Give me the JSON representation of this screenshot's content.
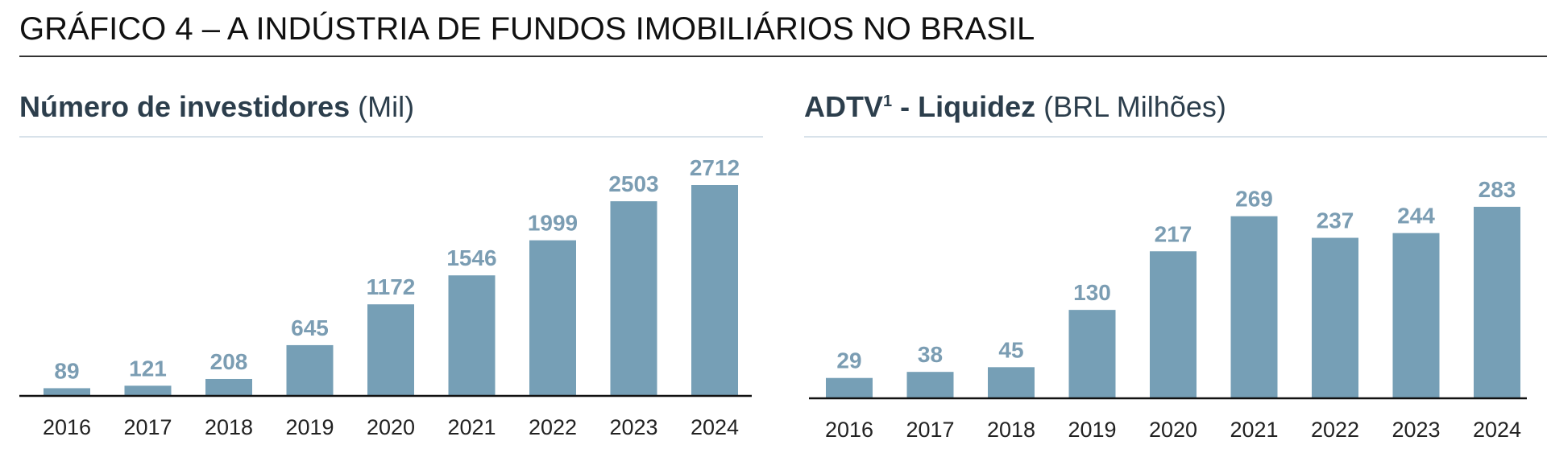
{
  "title": "GRÁFICO 4 – A INDÚSTRIA DE FUNDOS IMOBILIÁRIOS NO BRASIL",
  "colors": {
    "bar": "#769fb6",
    "value_label": "#7b9db3",
    "subtitle": "#2c3e4c"
  },
  "chart_data": [
    {
      "type": "bar",
      "title": "Número de investidores",
      "title_unit": "(Mil)",
      "categories": [
        "2016",
        "2017",
        "2018",
        "2019",
        "2020",
        "2021",
        "2022",
        "2023",
        "2024"
      ],
      "values": [
        89,
        121,
        208,
        645,
        1172,
        1546,
        1999,
        2503,
        2712
      ],
      "grid": false
    },
    {
      "type": "bar",
      "title": "ADTV",
      "title_sup": "1",
      "title_rest": " - Liquidez",
      "title_unit": "(BRL Milhões)",
      "categories": [
        "2016",
        "2017",
        "2018",
        "2019",
        "2020",
        "2021",
        "2022",
        "2023",
        "2024"
      ],
      "values": [
        29,
        38,
        45,
        130,
        217,
        269,
        237,
        244,
        283
      ],
      "grid": false
    }
  ]
}
